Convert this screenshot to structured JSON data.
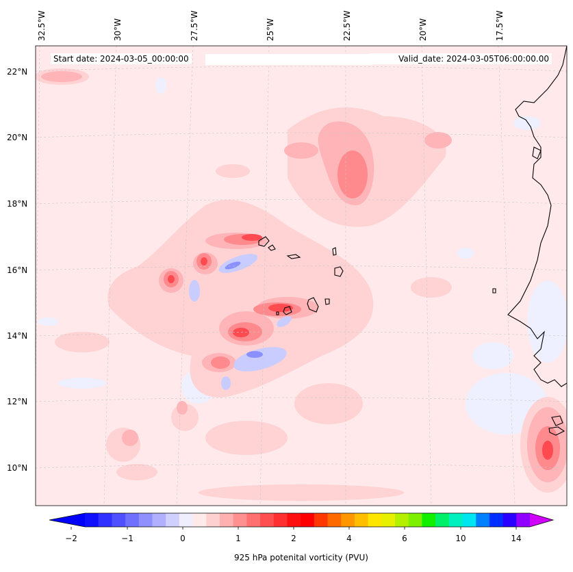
{
  "header": {
    "start_date": "Start date: 2024-03-05_00:00:00",
    "valid_date": "Valid_date: 2024-03-05T06:00:00.00"
  },
  "axes": {
    "lon_labels": [
      "32.5°W",
      "30°W",
      "27.5°W",
      "25°W",
      "22.5°W",
      "20°W",
      "17.5°W"
    ],
    "lat_labels": [
      "22°N",
      "20°N",
      "18°N",
      "16°N",
      "14°N",
      "12°N",
      "10°N"
    ]
  },
  "colorbar": {
    "label": "925 hPa potenital vorticity (PVU)",
    "ticks": [
      "−2",
      "−1",
      "0",
      "1",
      "2",
      "4",
      "6",
      "10",
      "14"
    ],
    "colors": [
      "#1010ff",
      "#3030ff",
      "#5050ff",
      "#7070ff",
      "#9090ff",
      "#b0b0ff",
      "#d0d0ff",
      "#eeeeff",
      "#ffeaea",
      "#ffd0d0",
      "#ffb0b0",
      "#ff9090",
      "#ff7070",
      "#ff5050",
      "#ff3030",
      "#ff1010",
      "#ff0000",
      "#ff3800",
      "#ff6a00",
      "#ff9800",
      "#ffbe00",
      "#ffe600",
      "#e6f000",
      "#b4f000",
      "#7cf000",
      "#10f000",
      "#00f06a",
      "#00f0c0",
      "#00e6f0",
      "#0080ff",
      "#0030ff",
      "#2a00ff",
      "#9000ff"
    ],
    "under_color": "#0000ff",
    "over_color": "#d000ff"
  },
  "map": {
    "background_color": "#ffe9ea"
  }
}
